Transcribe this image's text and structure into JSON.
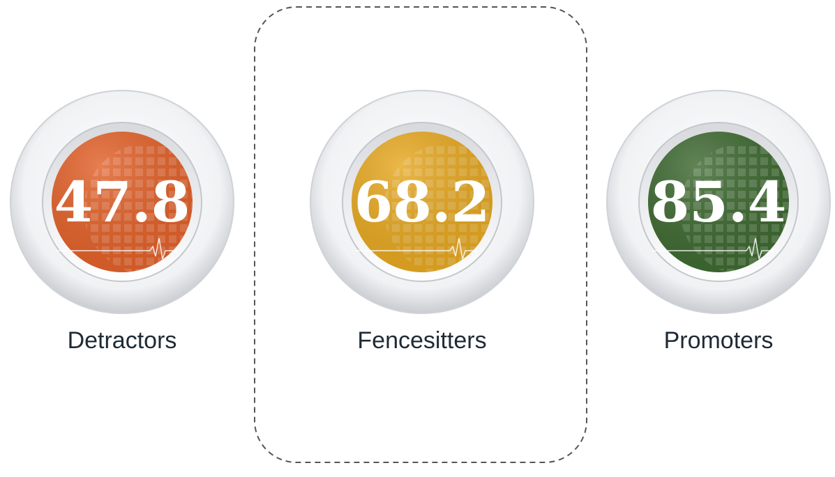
{
  "items": [
    {
      "value": 47.8,
      "label": "Detractors",
      "color": "#e2622b"
    },
    {
      "value": 68.2,
      "label": "Fencesitters",
      "color": "#e6a822"
    },
    {
      "value": 85.4,
      "label": "Promoters",
      "color": "#3f6a32"
    }
  ],
  "highlight": 1
}
